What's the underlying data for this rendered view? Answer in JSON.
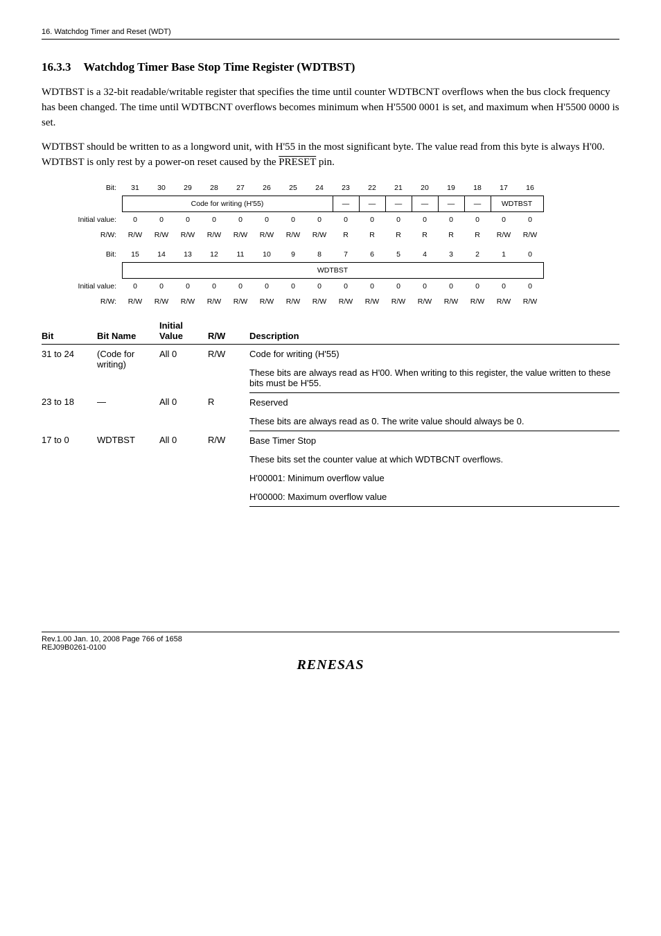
{
  "header": "16.   Watchdog Timer and Reset (WDT)",
  "section": {
    "num": "16.3.3",
    "title": "Watchdog Timer Base Stop Time Register (WDTBST)"
  },
  "para1": "WDTBST is a 32-bit readable/writable register that specifies the time until counter WDTBCNT overflows when the bus clock frequency has been changed. The time until WDTBCNT overflows becomes minimum when H'5500 0001 is set, and maximum when H'5500 0000 is set.",
  "para2_a": "WDTBST should be written to as a longword unit, with H'55 in the most significant byte. The value read from this byte is always H'00. WDTBST is only rest by a power-on reset caused by the ",
  "para2_preset": "PRESET",
  "para2_b": " pin.",
  "bitmap": {
    "row1": {
      "label_bit": "Bit:",
      "bits": [
        "31",
        "30",
        "29",
        "28",
        "27",
        "26",
        "25",
        "24",
        "23",
        "22",
        "21",
        "20",
        "19",
        "18",
        "17",
        "16"
      ],
      "name_merged": "Code for writing (H'55)",
      "name_dashes": [
        "—",
        "—",
        "—",
        "—",
        "—",
        "—"
      ],
      "name_last": "WDTBST",
      "label_iv": "Initial value:",
      "iv": [
        "0",
        "0",
        "0",
        "0",
        "0",
        "0",
        "0",
        "0",
        "0",
        "0",
        "0",
        "0",
        "0",
        "0",
        "0",
        "0"
      ],
      "label_rw": "R/W:",
      "rw": [
        "R/W",
        "R/W",
        "R/W",
        "R/W",
        "R/W",
        "R/W",
        "R/W",
        "R/W",
        "R",
        "R",
        "R",
        "R",
        "R",
        "R",
        "R/W",
        "R/W"
      ]
    },
    "row2": {
      "label_bit": "Bit:",
      "bits": [
        "15",
        "14",
        "13",
        "12",
        "11",
        "10",
        "9",
        "8",
        "7",
        "6",
        "5",
        "4",
        "3",
        "2",
        "1",
        "0"
      ],
      "name_merged": "WDTBST",
      "label_iv": "Initial value:",
      "iv": [
        "0",
        "0",
        "0",
        "0",
        "0",
        "0",
        "0",
        "0",
        "0",
        "0",
        "0",
        "0",
        "0",
        "0",
        "0",
        "0"
      ],
      "label_rw": "R/W:",
      "rw": [
        "R/W",
        "R/W",
        "R/W",
        "R/W",
        "R/W",
        "R/W",
        "R/W",
        "R/W",
        "R/W",
        "R/W",
        "R/W",
        "R/W",
        "R/W",
        "R/W",
        "R/W",
        "R/W"
      ]
    }
  },
  "desc": {
    "headers": {
      "bit": "Bit",
      "name": "Bit Name",
      "initial": "Initial Value",
      "rw": "R/W",
      "desc": "Description"
    },
    "rows": [
      {
        "bit": "31 to 24",
        "name": "(Code for writing)",
        "iv": "All 0",
        "rw": "R/W",
        "d1": "Code for writing (H'55)",
        "d2": "These bits are always read as H'00. When writing to this register, the value written to these bits must be H'55."
      },
      {
        "bit": "23 to 18",
        "name": "—",
        "iv": "All 0",
        "rw": "R",
        "d1": "Reserved",
        "d2": "These bits are always read as 0. The write value should always be 0."
      },
      {
        "bit": "17 to 0",
        "name": "WDTBST",
        "iv": "All 0",
        "rw": "R/W",
        "d1": "Base Timer Stop",
        "d2": "These bits set the counter value at which WDTBCNT overflows.",
        "d3": "H'00001: Minimum overflow value",
        "d4": "H'00000: Maximum overflow value"
      }
    ]
  },
  "footer": {
    "l1": "Rev.1.00  Jan. 10, 2008  Page 766 of 1658",
    "l2": "REJ09B0261-0100",
    "logo": "RENESAS"
  }
}
